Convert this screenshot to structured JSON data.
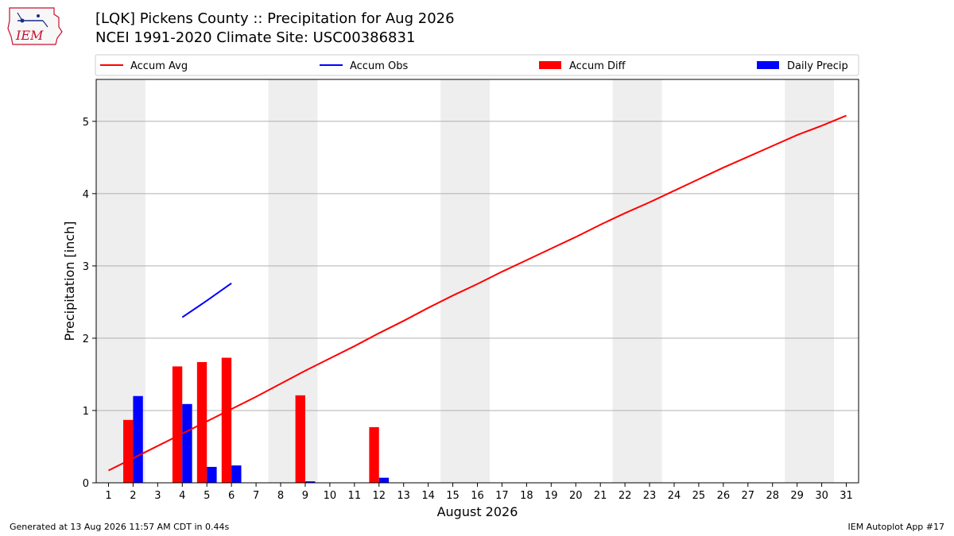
{
  "header": {
    "title_line1": "[LQK] Pickens County :: Precipitation for Aug 2026",
    "title_line2": "NCEI 1991-2020 Climate Site: USC00386831",
    "logo_text": "IEM",
    "logo_icon": "iem-logo-icon"
  },
  "footer": {
    "generated": "Generated at 13 Aug 2026 11:57 AM CDT in 0.44s",
    "app": "IEM Autoplot App #17"
  },
  "colors": {
    "accum_avg": "#ff0000",
    "accum_obs": "#0000ff",
    "accum_diff": "#ff0000",
    "daily_precip": "#0000ff",
    "weekend_shade": "#eeeeee",
    "grid": "#b0b0b0",
    "logo": "#c8102e"
  },
  "chart_data": {
    "type": "bar",
    "xlabel": "August 2026",
    "ylabel": "Precipitation [inch]",
    "xlim": [
      0.5,
      31.5
    ],
    "ylim": [
      0,
      5.58
    ],
    "yticks": [
      0,
      1,
      2,
      3,
      4,
      5
    ],
    "grid": "horizontal",
    "legend_placement": "top, above plot",
    "categories": [
      "1",
      "2",
      "3",
      "4",
      "5",
      "6",
      "7",
      "8",
      "9",
      "10",
      "11",
      "12",
      "13",
      "14",
      "15",
      "16",
      "17",
      "18",
      "19",
      "20",
      "21",
      "22",
      "23",
      "24",
      "25",
      "26",
      "27",
      "28",
      "29",
      "30",
      "31"
    ],
    "shaded_days": [
      [
        1,
        2
      ],
      [
        8,
        9
      ],
      [
        15,
        16
      ],
      [
        22,
        23
      ],
      [
        29,
        30
      ]
    ],
    "series": [
      {
        "name": "Accum Avg",
        "kind": "line",
        "x": [
          1,
          2,
          3,
          4,
          5,
          6,
          7,
          8,
          9,
          10,
          11,
          12,
          13,
          14,
          15,
          16,
          17,
          18,
          19,
          20,
          21,
          22,
          23,
          24,
          25,
          26,
          27,
          28,
          29,
          30,
          31
        ],
        "values": [
          0.17,
          0.34,
          0.51,
          0.68,
          0.85,
          1.02,
          1.19,
          1.37,
          1.55,
          1.72,
          1.89,
          2.07,
          2.24,
          2.42,
          2.59,
          2.75,
          2.92,
          3.08,
          3.24,
          3.4,
          3.57,
          3.73,
          3.88,
          4.04,
          4.2,
          4.36,
          4.51,
          4.66,
          4.81,
          4.94,
          5.08
        ]
      },
      {
        "name": "Accum Obs",
        "kind": "line",
        "x": [
          4,
          5,
          6
        ],
        "values": [
          2.29,
          2.52,
          2.76
        ]
      },
      {
        "name": "Accum Diff",
        "kind": "bar",
        "x": [
          2,
          4,
          5,
          6,
          9,
          12
        ],
        "values": [
          0.87,
          1.61,
          1.67,
          1.73,
          1.21,
          0.77
        ]
      },
      {
        "name": "Daily Precip",
        "kind": "bar",
        "x": [
          2,
          4,
          5,
          6,
          9,
          12
        ],
        "values": [
          1.2,
          1.09,
          0.22,
          0.24,
          0.02,
          0.07
        ]
      }
    ]
  }
}
